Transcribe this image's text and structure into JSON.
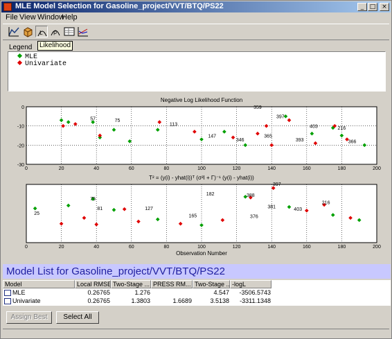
{
  "window": {
    "title": "MLE Model Selection for Gasoline_project/VVT/BTQ/PS22"
  },
  "menu": [
    "File",
    "View",
    "Window",
    "Help"
  ],
  "toolbar": {
    "tooltip": "Likelihood",
    "icons": [
      "plot-icon",
      "cube-icon",
      "likelihood-icon",
      "probability-icon",
      "table-icon",
      "scatter-icon"
    ]
  },
  "legend": {
    "label": "Legend",
    "items": [
      {
        "name": "MLE",
        "color": "#00a000"
      },
      {
        "name": "Univariate",
        "color": "#e00000"
      }
    ]
  },
  "chart_data": [
    {
      "type": "scatter",
      "title": "Negative Log Likelihood Function",
      "xlabel": "",
      "ylabel": "",
      "xlim": [
        0,
        200
      ],
      "ylim": [
        -30,
        0
      ],
      "xticks": [
        0,
        20,
        40,
        60,
        80,
        100,
        120,
        140,
        160,
        180,
        200
      ],
      "yticks": [
        -30,
        -20,
        -10,
        0
      ],
      "grid": true,
      "series": [
        {
          "name": "MLE",
          "x": [
            20,
            24,
            38,
            42,
            50,
            59,
            75,
            100,
            113,
            125,
            148,
            163,
            175,
            180,
            193
          ],
          "y": [
            -7,
            -8,
            -8,
            -16,
            -12,
            -18,
            -12,
            -17,
            -13,
            -20,
            -5,
            -14,
            -11,
            -15,
            -20
          ]
        },
        {
          "name": "Univariate",
          "x": [
            21,
            28,
            42,
            76,
            96,
            118,
            132,
            137,
            140,
            150,
            165,
            176,
            183
          ],
          "y": [
            -10,
            -9,
            -15,
            -8,
            -13,
            -16,
            -14,
            -10,
            -20,
            -7,
            -19,
            -10,
            -17
          ]
        }
      ],
      "annotations": [
        {
          "text": "359",
          "x": 132,
          "y": -1
        },
        {
          "text": "397",
          "x": 145,
          "y": -6
        },
        {
          "text": "403",
          "x": 164,
          "y": -11
        },
        {
          "text": "216",
          "x": 180,
          "y": -12
        },
        {
          "text": "113",
          "x": 84,
          "y": -10
        },
        {
          "text": "57",
          "x": 38,
          "y": -7
        },
        {
          "text": "75",
          "x": 52,
          "y": -8
        },
        {
          "text": "147",
          "x": 106,
          "y": -16
        },
        {
          "text": "346",
          "x": 122,
          "y": -18
        },
        {
          "text": "365",
          "x": 138,
          "y": -16
        },
        {
          "text": "393",
          "x": 156,
          "y": -18
        },
        {
          "text": "366",
          "x": 186,
          "y": -19
        }
      ]
    },
    {
      "type": "scatter",
      "title": "T² = (y(i) - yhat(i))ᵀ (σ²I + Γ)⁻¹ (y(i) - yhat(i))",
      "xlabel": "Observation Number",
      "ylabel": "",
      "xlim": [
        0,
        200
      ],
      "ylim": [
        0,
        8
      ],
      "xticks": [
        0,
        20,
        40,
        60,
        80,
        100,
        120,
        140,
        160,
        180,
        200
      ],
      "yticks": [],
      "grid": true,
      "series": [
        {
          "name": "MLE",
          "x": [
            5,
            24,
            38,
            50,
            75,
            100,
            125,
            150,
            175,
            190
          ],
          "y": [
            4.7,
            5.1,
            6,
            4.5,
            3.2,
            2.4,
            6.3,
            4.9,
            3.8,
            3.1
          ]
        },
        {
          "name": "Univariate",
          "x": [
            20,
            33,
            40,
            56,
            64,
            88,
            112,
            128,
            141,
            160,
            170,
            185
          ],
          "y": [
            2.6,
            3.4,
            2.5,
            4.6,
            2.9,
            2.6,
            3.1,
            6.2,
            7.5,
            4.4,
            5.2,
            3.4
          ]
        }
      ],
      "annotations": [
        {
          "text": "397",
          "x": 143,
          "y": 7.8
        },
        {
          "text": "182",
          "x": 105,
          "y": 6.5
        },
        {
          "text": "388",
          "x": 128,
          "y": 6.3
        },
        {
          "text": "216",
          "x": 171,
          "y": 5.3
        },
        {
          "text": "381",
          "x": 140,
          "y": 4.7
        },
        {
          "text": "403",
          "x": 155,
          "y": 4.4
        },
        {
          "text": "75",
          "x": 38,
          "y": 5.8
        },
        {
          "text": "81",
          "x": 42,
          "y": 4.5
        },
        {
          "text": "127",
          "x": 70,
          "y": 4.5
        },
        {
          "text": "165",
          "x": 95,
          "y": 3.5
        },
        {
          "text": "376",
          "x": 130,
          "y": 3.4
        },
        {
          "text": "25",
          "x": 6,
          "y": 3.8
        }
      ]
    }
  ],
  "banner": {
    "text": "Model List for Gasoline_project/VVT/BTQ/PS22"
  },
  "table": {
    "columns": [
      "Model",
      "Local RMSE",
      "Two-Stage ...",
      "PRESS RM...",
      "Two-Stage ...",
      "-logL"
    ],
    "rows": [
      {
        "model": "MLE",
        "cells": [
          "0.26765",
          "1.276",
          "",
          "4.547",
          "-3506.5743"
        ]
      },
      {
        "model": "Univariate",
        "cells": [
          "0.26765",
          "1.3803",
          "1.6689",
          "3.5138",
          "-3311.1348"
        ]
      }
    ]
  },
  "buttons": {
    "assign_best": "Assign Best",
    "select_all": "Select All"
  },
  "colors": {
    "mle": "#00a000",
    "univariate": "#e00000",
    "banner": "#c8c8ff",
    "banner_text": "#2020a0"
  }
}
